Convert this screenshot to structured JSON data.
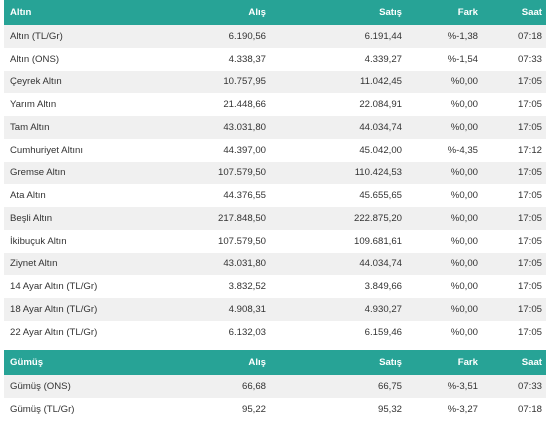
{
  "gold": {
    "headers": [
      "Altın",
      "Alış",
      "Satış",
      "Fark",
      "Saat"
    ],
    "rows": [
      [
        "Altın (TL/Gr)",
        "6.190,56",
        "6.191,44",
        "%-1,38",
        "07:18"
      ],
      [
        "Altın (ONS)",
        "4.338,37",
        "4.339,27",
        "%-1,54",
        "07:33"
      ],
      [
        "Çeyrek Altın",
        "10.757,95",
        "11.042,45",
        "%0,00",
        "17:05"
      ],
      [
        "Yarım Altın",
        "21.448,66",
        "22.084,91",
        "%0,00",
        "17:05"
      ],
      [
        "Tam Altın",
        "43.031,80",
        "44.034,74",
        "%0,00",
        "17:05"
      ],
      [
        "Cumhuriyet Altını",
        "44.397,00",
        "45.042,00",
        "%-4,35",
        "17:12"
      ],
      [
        "Gremse Altın",
        "107.579,50",
        "110.424,53",
        "%0,00",
        "17:05"
      ],
      [
        "Ata Altın",
        "44.376,55",
        "45.655,65",
        "%0,00",
        "17:05"
      ],
      [
        "Beşli Altın",
        "217.848,50",
        "222.875,20",
        "%0,00",
        "17:05"
      ],
      [
        "İkibuçuk Altın",
        "107.579,50",
        "109.681,61",
        "%0,00",
        "17:05"
      ],
      [
        "Ziynet Altın",
        "43.031,80",
        "44.034,74",
        "%0,00",
        "17:05"
      ],
      [
        "14 Ayar Altın (TL/Gr)",
        "3.832,52",
        "3.849,66",
        "%0,00",
        "17:05"
      ],
      [
        "18 Ayar Altın (TL/Gr)",
        "4.908,31",
        "4.930,27",
        "%0,00",
        "17:05"
      ],
      [
        "22 Ayar Altın (TL/Gr)",
        "6.132,03",
        "6.159,46",
        "%0,00",
        "17:05"
      ]
    ]
  },
  "silver": {
    "headers": [
      "Gümüş",
      "Alış",
      "Satış",
      "Fark",
      "Saat"
    ],
    "rows": [
      [
        "Gümüş (ONS)",
        "66,68",
        "66,75",
        "%-3,51",
        "07:33"
      ],
      [
        "Gümüş (TL/Gr)",
        "95,22",
        "95,32",
        "%-3,27",
        "07:18"
      ]
    ]
  },
  "colors": {
    "header_bg": "#27a396",
    "header_text": "#ffffff",
    "row_alt": "#f0f0f0"
  }
}
